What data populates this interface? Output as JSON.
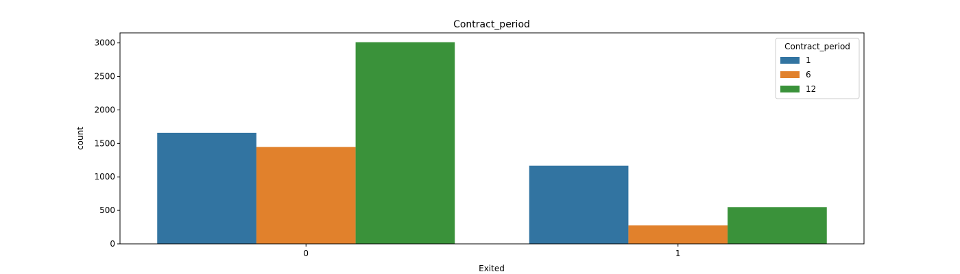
{
  "chart_data": {
    "type": "bar",
    "title": "Contract_period",
    "xlabel": "Exited",
    "ylabel": "count",
    "categories": [
      "0",
      "1"
    ],
    "ylim": [
      0,
      3150
    ],
    "yticks": [
      0,
      500,
      1000,
      1500,
      2000,
      2500,
      3000
    ],
    "legend": {
      "title": "Contract_period",
      "placement": "top-right"
    },
    "series": [
      {
        "name": "1",
        "color": "#3274a1",
        "values": [
          1658,
          1168
        ]
      },
      {
        "name": "6",
        "color": "#e1812c",
        "values": [
          1446,
          275
        ]
      },
      {
        "name": "12",
        "color": "#3a923a",
        "values": [
          3011,
          549
        ]
      }
    ]
  }
}
